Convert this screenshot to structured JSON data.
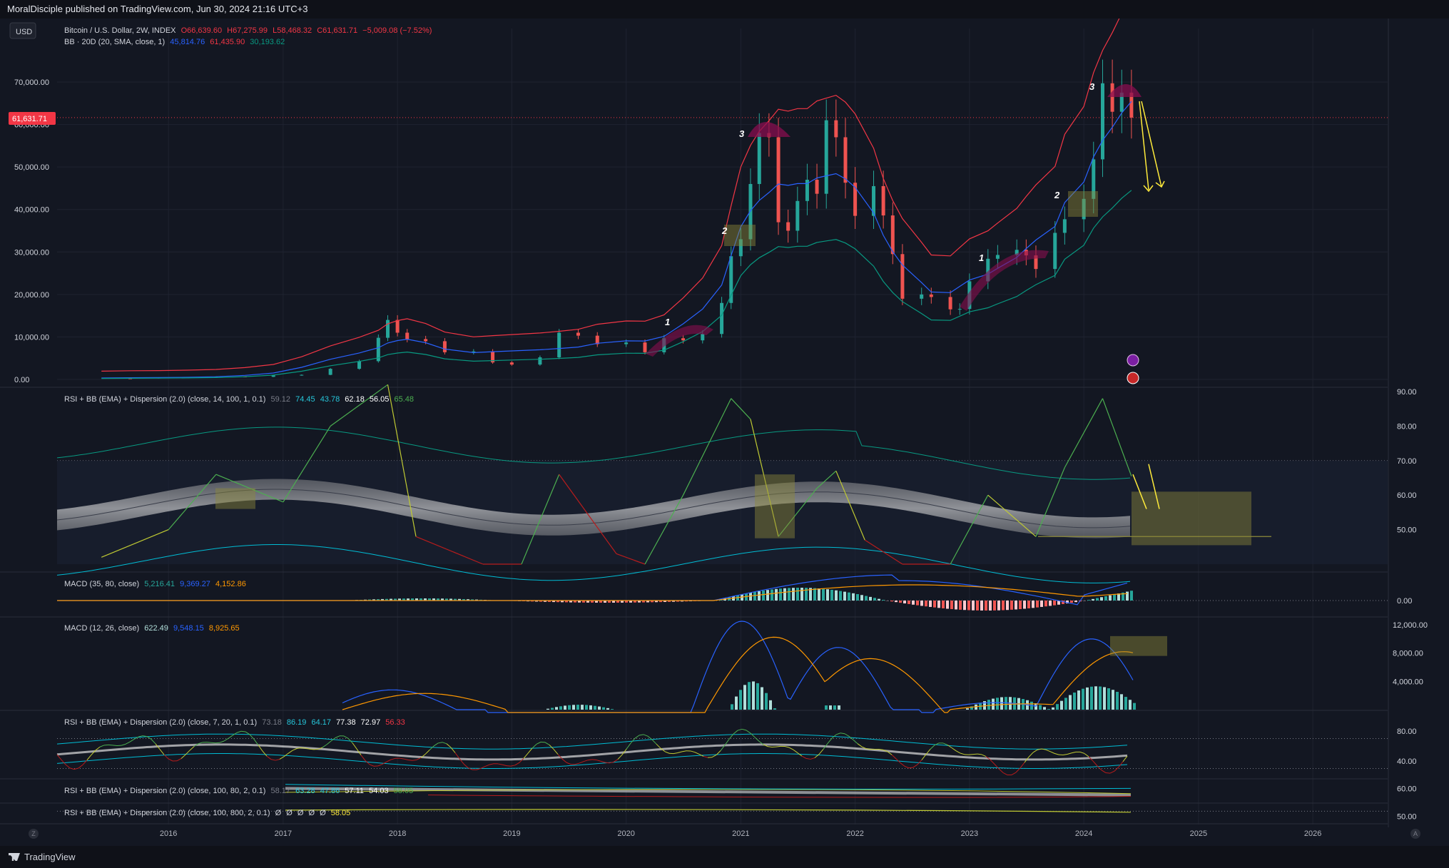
{
  "header": {
    "publisher": "MoralDisciple published on TradingView.com, Jun 30, 2024 21:16 UTC+3"
  },
  "currency_button": "USD",
  "main_legend": {
    "symbol": "Bitcoin / U.S. Dollar, 2W, INDEX",
    "o_label": "O",
    "o": "66,639.60",
    "h_label": "H",
    "h": "67,275.99",
    "l_label": "L",
    "l": "58,468.32",
    "c_label": "C",
    "c": "61,631.71",
    "change": "−5,009.08 (−7.52%)",
    "bb_label": "BB · 20D (20, SMA, close, 1)",
    "bb_basis": "45,814.76",
    "bb_upper": "61,435.90",
    "bb_lower": "30,193.62"
  },
  "price_label": "61,631.71",
  "pane_labels": {
    "rsi1": "RSI + BB (EMA) + Dispersion (2.0) (close, 14, 100, 1, 0.1)",
    "rsi1_values": [
      "59.12",
      "74.45",
      "43.78",
      "62.18",
      "56.05",
      "65.48"
    ],
    "macd1": "MACD (35, 80, close)",
    "macd1_values": [
      "5,216.41",
      "9,369.27",
      "4,152.86"
    ],
    "macd2": "MACD (12, 26, close)",
    "macd2_values": [
      "622.49",
      "9,548.15",
      "8,925.65"
    ],
    "rsi2": "RSI + BB (EMA) + Dispersion (2.0) (close, 7, 20, 1, 0.1)",
    "rsi2_values": [
      "73.18",
      "86.19",
      "64.17",
      "77.38",
      "72.97",
      "56.33"
    ],
    "rsi3": "RSI + BB (EMA) + Dispersion (2.0) (close, 100, 80, 2, 0.1)",
    "rsi3_values": [
      "58.17",
      "63.28",
      "47.86",
      "57.11",
      "54.03",
      "58.05"
    ],
    "rsi4": "RSI + BB (EMA) + Dispersion (2.0) (close, 100, 800, 2, 0.1)",
    "rsi4_values": [
      "Ø",
      "Ø",
      "Ø",
      "Ø",
      "Ø",
      "58.05"
    ]
  },
  "annotations": {
    "wave1a": "1",
    "wave2a": "2",
    "wave3a": "3",
    "wave1b": "1",
    "wave2b": "2",
    "wave3b": "3"
  },
  "footer": {
    "brand": "TradingView",
    "left_marker": "Z",
    "right_marker": "A"
  },
  "colors": {
    "background": "#131722",
    "up": "#26a69a",
    "down": "#ef5350",
    "bb_upper": "#f23645",
    "bb_basis": "#2962ff",
    "bb_lower": "#089981",
    "macd": "#2962ff",
    "signal": "#ff9800",
    "rsi_up": "#4caf50",
    "rsi_down": "#b71c1c",
    "arrow": "#ffeb3b",
    "hump": "#880e4f"
  },
  "chart_data": [
    {
      "type": "candlestick",
      "title": "Bitcoin / U.S. Dollar, 2W, INDEX",
      "x": [
        "2015-06",
        "2015-09",
        "2015-12",
        "2016-03",
        "2016-06",
        "2016-09",
        "2016-12",
        "2017-03",
        "2017-06",
        "2017-09",
        "2017-11",
        "2017-12",
        "2018-01",
        "2018-02",
        "2018-04",
        "2018-06",
        "2018-09",
        "2018-11",
        "2019-01",
        "2019-04",
        "2019-06",
        "2019-08",
        "2019-10",
        "2020-01",
        "2020-03",
        "2020-05",
        "2020-07",
        "2020-09",
        "2020-11",
        "2020-12",
        "2021-01",
        "2021-02",
        "2021-03",
        "2021-04",
        "2021-05",
        "2021-06",
        "2021-07",
        "2021-08",
        "2021-09",
        "2021-10",
        "2021-11",
        "2021-12",
        "2022-01",
        "2022-03",
        "2022-04",
        "2022-05",
        "2022-06",
        "2022-08",
        "2022-09",
        "2022-11",
        "2022-12",
        "2023-01",
        "2023-03",
        "2023-04",
        "2023-06",
        "2023-07",
        "2023-08",
        "2023-10",
        "2023-11",
        "2024-01",
        "2024-02",
        "2024-03",
        "2024-04",
        "2024-05",
        "2024-06"
      ],
      "close": [
        250,
        240,
        430,
        420,
        670,
        610,
        960,
        1080,
        2500,
        4300,
        9800,
        14000,
        11000,
        9500,
        9000,
        6400,
        6600,
        4000,
        3500,
        5200,
        11000,
        10300,
        8300,
        8700,
        6400,
        9700,
        9200,
        10700,
        18000,
        29000,
        33000,
        46000,
        58000,
        57000,
        37000,
        35000,
        42000,
        47000,
        43700,
        61000,
        57000,
        46300,
        38500,
        45500,
        38600,
        29500,
        19000,
        20000,
        19400,
        16500,
        16600,
        23100,
        28400,
        29300,
        30500,
        29200,
        26000,
        34500,
        37700,
        42500,
        51800,
        69700,
        63000,
        67500,
        61631.71
      ],
      "bollinger_bands": {
        "period": 20,
        "upper_last": 61435.9,
        "basis_last": 45814.76,
        "lower_last": 30193.62
      },
      "ylim": [
        0,
        75000
      ],
      "yticks": [
        "0.00",
        "10,000.00",
        "20,000.00",
        "30,000.00",
        "40,000.00",
        "50,000.00",
        "60,000.00",
        "70,000.00"
      ],
      "xticks": [
        "2016",
        "2017",
        "2018",
        "2019",
        "2020",
        "2021",
        "2022",
        "2023",
        "2024",
        "2025",
        "2026"
      ],
      "last_price": 61631.71
    },
    {
      "type": "line",
      "title": "RSI + BB (EMA) + Dispersion (2.0) (close, 14, 100, 1, 0.1)",
      "x": [
        "2015-06",
        "2016-01",
        "2016-06",
        "2017-01",
        "2017-06",
        "2017-12",
        "2018-03",
        "2018-10",
        "2019-02",
        "2019-06",
        "2019-12",
        "2020-03",
        "2020-07",
        "2020-12",
        "2021-02",
        "2021-05",
        "2021-09",
        "2021-11",
        "2022-02",
        "2022-06",
        "2022-11",
        "2023-03",
        "2023-08",
        "2023-11",
        "2024-03",
        "2024-06"
      ],
      "rsi": [
        42,
        50,
        66,
        58,
        80,
        92,
        48,
        35,
        28,
        66,
        43,
        36,
        60,
        88,
        82,
        48,
        62,
        67,
        47,
        30,
        23,
        60,
        48,
        68,
        88,
        65.48
      ],
      "ylim": [
        40,
        90
      ],
      "yticks": [
        "50.00",
        "60.00",
        "70.00",
        "80.00",
        "90.00"
      ]
    },
    {
      "type": "bar",
      "title": "MACD (35, 80, close)",
      "series": [
        {
          "name": "MACD",
          "last": 9369.27
        },
        {
          "name": "Signal",
          "last": 4152.86
        },
        {
          "name": "Histogram",
          "last": 5216.41
        }
      ],
      "yticks": [
        "0.00"
      ]
    },
    {
      "type": "bar",
      "title": "MACD (12, 26, close)",
      "series": [
        {
          "name": "MACD",
          "last": 9548.15
        },
        {
          "name": "Signal",
          "last": 8925.65
        },
        {
          "name": "Histogram",
          "last": 622.49
        }
      ],
      "yticks": [
        "4,000.00",
        "8,000.00",
        "12,000.00"
      ]
    },
    {
      "type": "line",
      "title": "RSI + BB (EMA) + Dispersion (2.0) (close, 7, 20, 1, 0.1)",
      "yticks": [
        "40.00",
        "80.00"
      ]
    },
    {
      "type": "line",
      "title": "RSI + BB (EMA) + Dispersion (2.0) (close, 100, 80, 2, 0.1)",
      "yticks": [
        "60.00"
      ]
    },
    {
      "type": "line",
      "title": "RSI + BB (EMA) + Dispersion (2.0) (close, 100, 800, 2, 0.1)",
      "yticks": [
        "50.00"
      ]
    }
  ]
}
